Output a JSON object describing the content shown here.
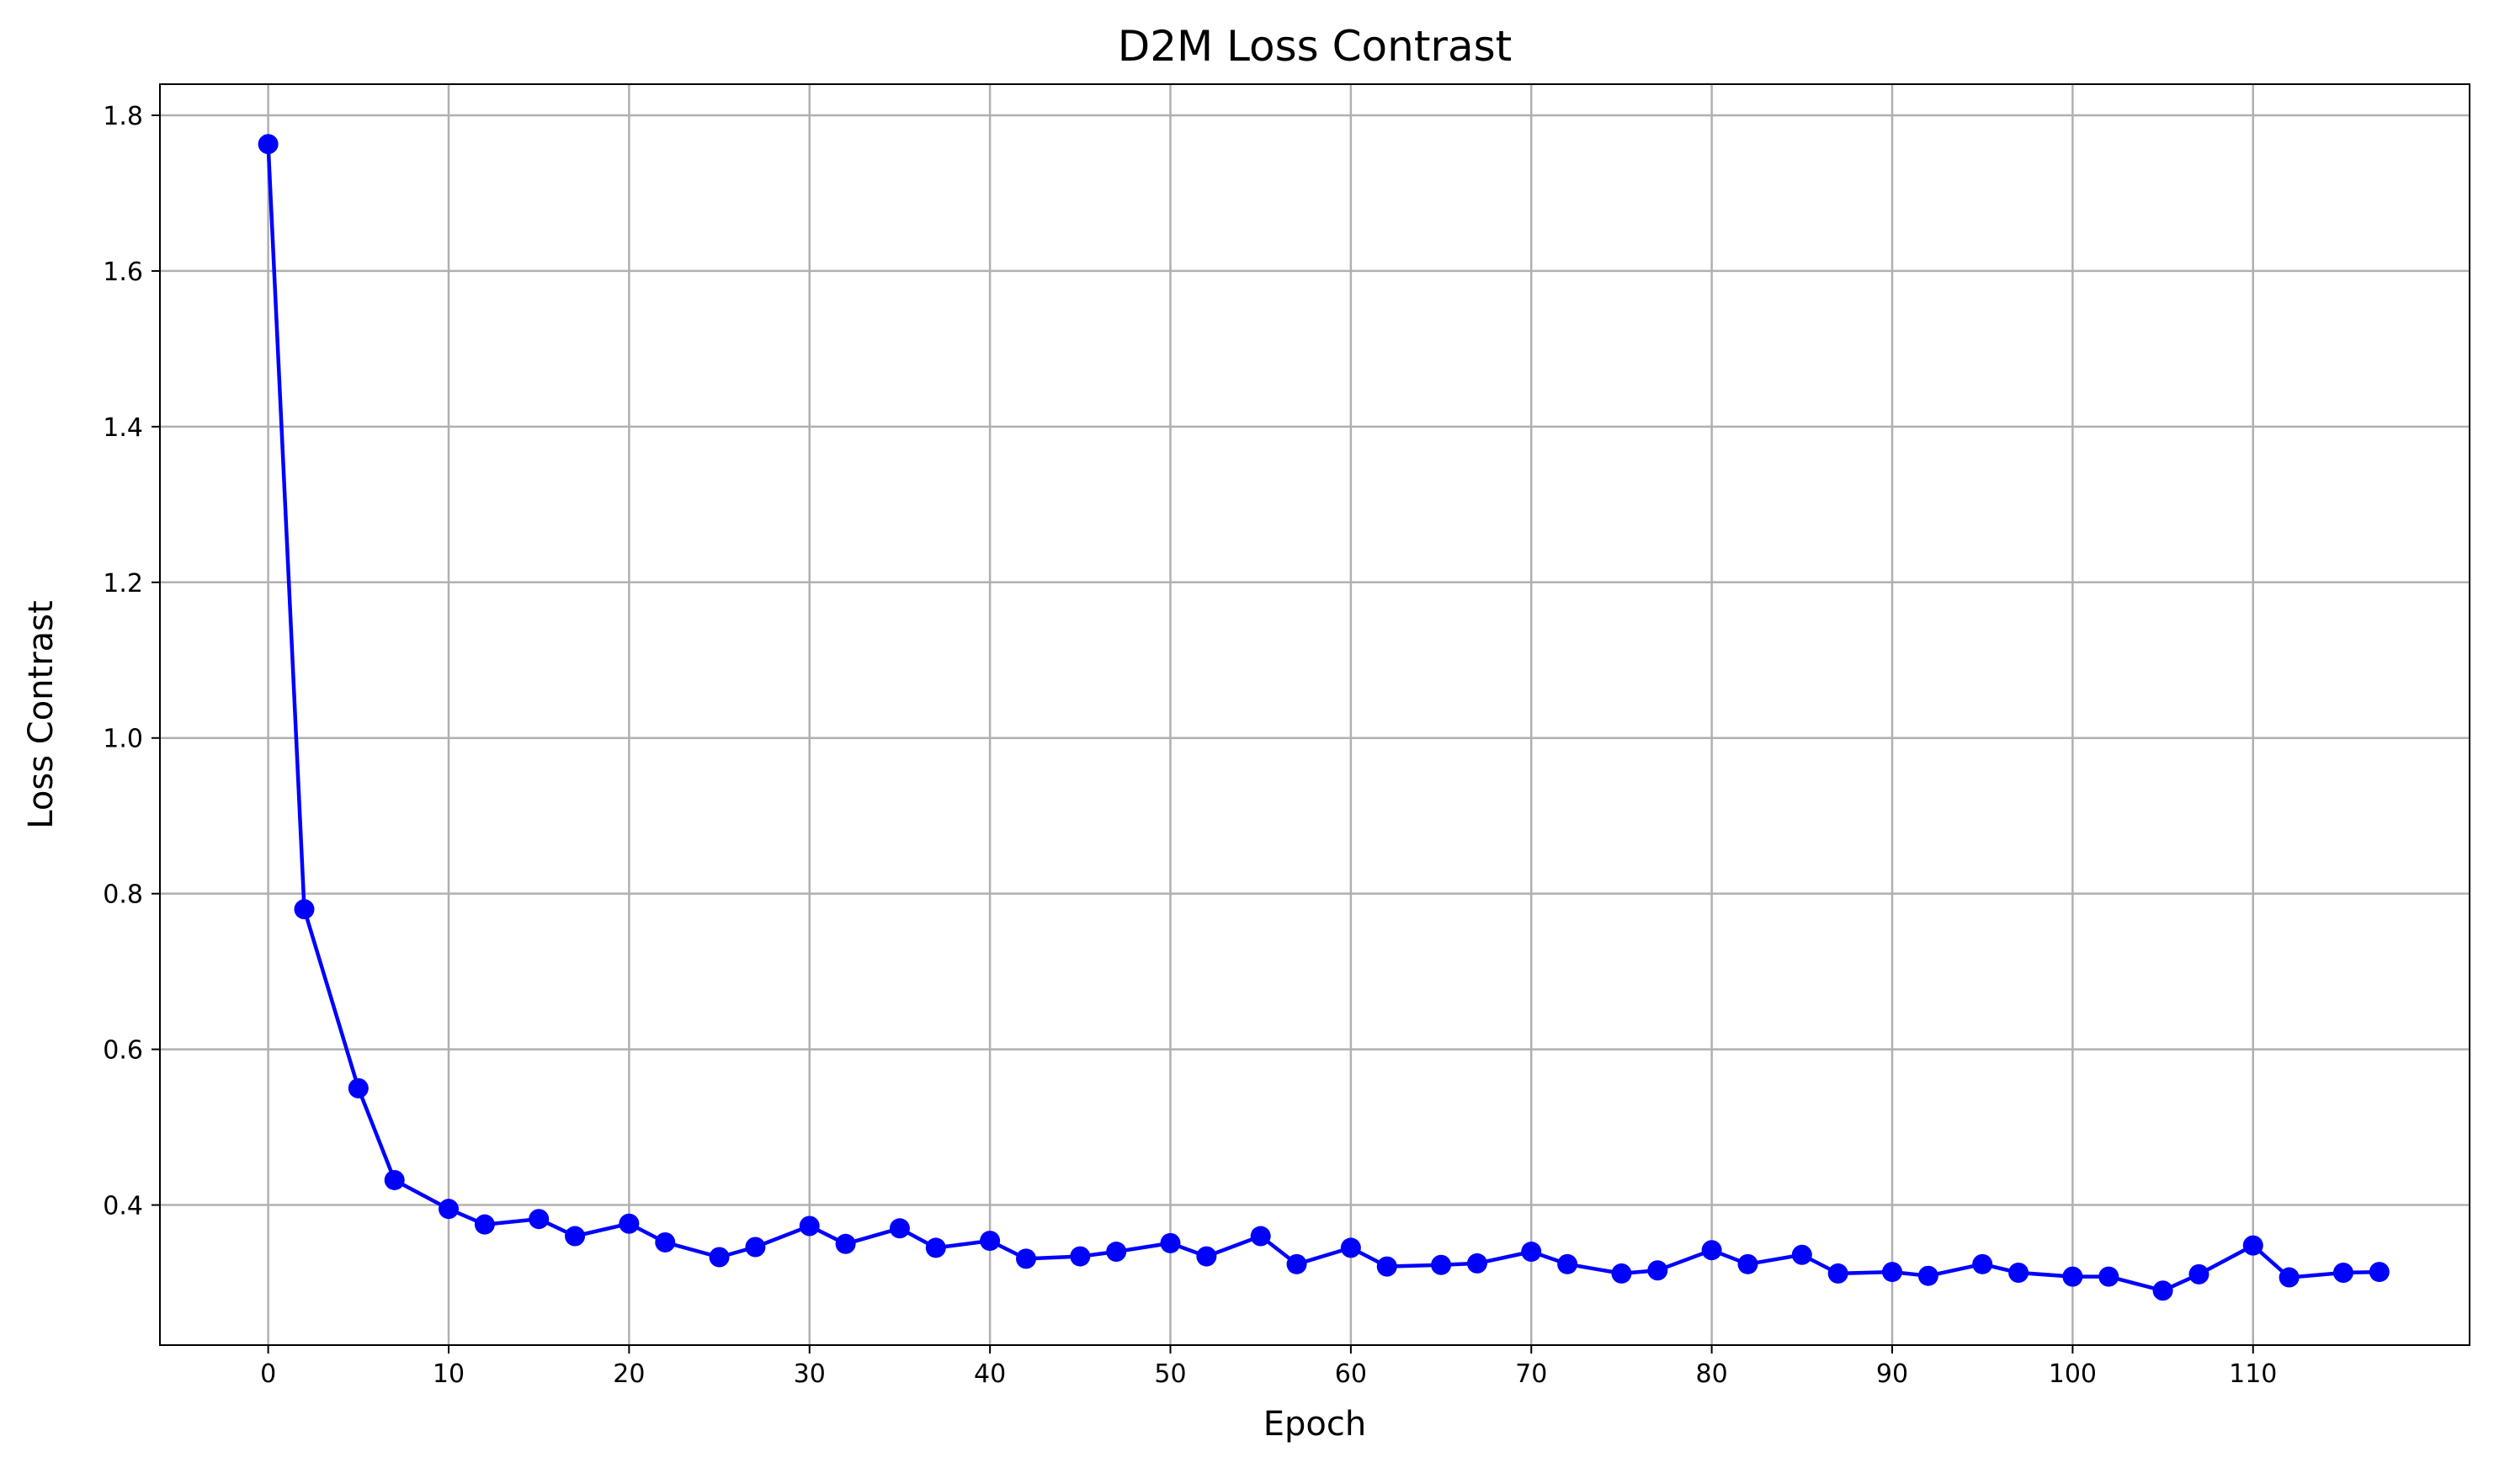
{
  "chart_data": {
    "type": "line",
    "title": "D2M Loss Contrast",
    "xlabel": "Epoch",
    "ylabel": "Loss Contrast",
    "xlim": [
      -6,
      122
    ],
    "ylim": [
      0.22,
      1.84
    ],
    "xticks": [
      0,
      10,
      20,
      30,
      40,
      50,
      60,
      70,
      80,
      90,
      100,
      110
    ],
    "yticks": [
      0.4,
      0.6,
      0.8,
      1.0,
      1.2,
      1.4,
      1.6,
      1.8
    ],
    "ytick_labels": [
      "0.4",
      "0.6",
      "0.8",
      "1.0",
      "1.2",
      "1.4",
      "1.6",
      "1.8"
    ],
    "grid": true,
    "legend": "none",
    "color": "#0000ff",
    "series": [
      {
        "x": [
          0,
          2,
          5,
          7,
          10,
          12,
          15,
          17,
          20,
          22,
          25,
          27,
          30,
          32,
          35,
          37,
          40,
          42,
          45,
          47,
          50,
          52,
          55,
          57,
          60,
          62,
          65,
          67,
          70,
          72,
          75,
          77,
          80,
          82,
          85,
          87,
          90,
          92,
          95,
          97,
          100,
          102,
          105,
          107,
          110,
          112,
          115,
          117
        ],
        "values": [
          1.763,
          0.78,
          0.55,
          0.432,
          0.395,
          0.375,
          0.382,
          0.36,
          0.376,
          0.352,
          0.333,
          0.346,
          0.373,
          0.35,
          0.37,
          0.345,
          0.354,
          0.331,
          0.334,
          0.34,
          0.351,
          0.334,
          0.36,
          0.324,
          0.345,
          0.321,
          0.323,
          0.325,
          0.34,
          0.324,
          0.312,
          0.316,
          0.342,
          0.324,
          0.336,
          0.312,
          0.314,
          0.309,
          0.324,
          0.313,
          0.308,
          0.308,
          0.29,
          0.311,
          0.348,
          0.307,
          0.313,
          0.314
        ]
      }
    ]
  }
}
